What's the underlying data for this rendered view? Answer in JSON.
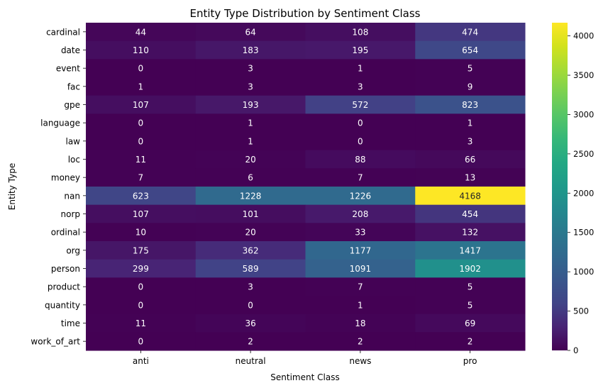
{
  "chart_data": {
    "type": "heatmap",
    "title": "Entity Type Distribution by Sentiment Class",
    "xlabel": "Sentiment Class",
    "ylabel": "Entity Type",
    "x_categories": [
      "anti",
      "neutral",
      "news",
      "pro"
    ],
    "y_categories": [
      "cardinal",
      "date",
      "event",
      "fac",
      "gpe",
      "language",
      "law",
      "loc",
      "money",
      "nan",
      "norp",
      "ordinal",
      "org",
      "person",
      "product",
      "quantity",
      "time",
      "work_of_art"
    ],
    "values": [
      [
        44,
        64,
        108,
        474
      ],
      [
        110,
        183,
        195,
        654
      ],
      [
        0,
        3,
        1,
        5
      ],
      [
        1,
        3,
        3,
        9
      ],
      [
        107,
        193,
        572,
        823
      ],
      [
        0,
        1,
        0,
        1
      ],
      [
        0,
        1,
        0,
        3
      ],
      [
        11,
        20,
        88,
        66
      ],
      [
        7,
        6,
        7,
        13
      ],
      [
        623,
        1228,
        1226,
        4168
      ],
      [
        107,
        101,
        208,
        454
      ],
      [
        10,
        20,
        33,
        132
      ],
      [
        175,
        362,
        1177,
        1417
      ],
      [
        299,
        589,
        1091,
        1902
      ],
      [
        0,
        3,
        7,
        5
      ],
      [
        0,
        0,
        1,
        5
      ],
      [
        11,
        36,
        18,
        69
      ],
      [
        0,
        2,
        2,
        2
      ]
    ],
    "colormap": "viridis",
    "colorbar": {
      "range": [
        0,
        4168
      ],
      "ticks": [
        0,
        500,
        1000,
        1500,
        2000,
        2500,
        3000,
        3500,
        4000
      ]
    },
    "annotations": "cell values"
  }
}
